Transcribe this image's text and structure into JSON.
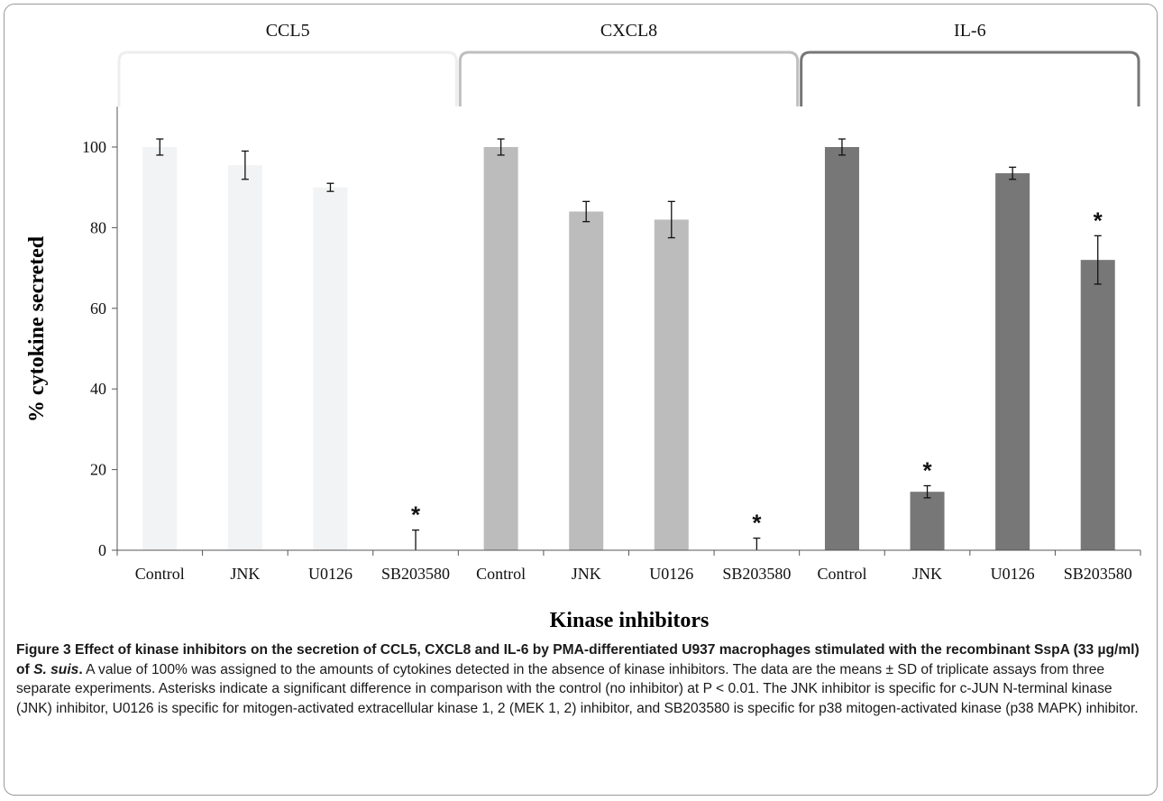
{
  "chart_data": {
    "type": "bar",
    "categories": [
      "Control",
      "JNK",
      "U0126",
      "SB203580",
      "Control",
      "JNK",
      "U0126",
      "SB203580",
      "Control",
      "JNK",
      "U0126",
      "SB203580"
    ],
    "groups": [
      {
        "name": "CCL5",
        "color": "#f2f3f4",
        "bracket_color": "#eeeeee",
        "values": [
          100,
          95.5,
          90,
          0
        ],
        "errors": [
          2,
          3.5,
          1,
          5
        ],
        "significant": [
          false,
          false,
          false,
          true
        ]
      },
      {
        "name": "CXCL8",
        "color": "#bcbcbc",
        "bracket_color": "#bfbfbf",
        "values": [
          100,
          84,
          82,
          0
        ],
        "errors": [
          2,
          2.5,
          4.5,
          3
        ],
        "significant": [
          false,
          false,
          false,
          true
        ]
      },
      {
        "name": "IL-6",
        "color": "#777777",
        "bracket_color": "#777777",
        "values": [
          100,
          14.5,
          93.5,
          72
        ],
        "errors": [
          2,
          1.5,
          1.5,
          6
        ],
        "significant": [
          false,
          true,
          false,
          true
        ]
      }
    ],
    "significance_marker": "*",
    "xlabel": "Kinase inhibitors",
    "ylabel": "% cytokine secreted",
    "ylim": [
      0,
      110
    ],
    "yticks": [
      0,
      20,
      40,
      60,
      80,
      100
    ],
    "grid": false,
    "legend": "group labels above brackets"
  },
  "caption": {
    "bold_part": "Figure 3 Effect of kinase inhibitors on the secretion of CCL5, CXCL8 and IL-6 by PMA-differentiated U937 macrophages stimulated with the recombinant SspA (33 µg/ml) of ",
    "bold_italic_part": "S. suis",
    "bold_end": ".",
    "body": " A value of 100% was assigned to the amounts of cytokines detected in the absence of kinase inhibitors. The data are the means ± SD of triplicate assays from three separate experiments. Asterisks indicate a significant difference in comparison with the control (no inhibitor) at P < 0.01. The JNK inhibitor is specific for c-JUN N-terminal kinase (JNK) inhibitor, U0126 is specific for mitogen-activated extracellular kinase 1, 2 (MEK 1, 2) inhibitor, and SB203580 is specific for p38 mitogen-activated kinase (p38 MAPK) inhibitor."
  }
}
